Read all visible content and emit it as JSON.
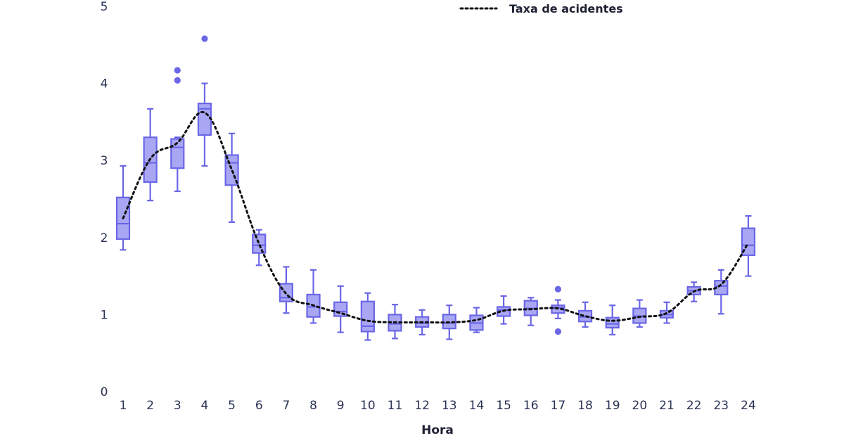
{
  "chart_data": {
    "type": "box",
    "xlabel": "Hora",
    "ylabel": "",
    "categories": [
      "1",
      "2",
      "3",
      "4",
      "5",
      "6",
      "7",
      "8",
      "9",
      "10",
      "11",
      "12",
      "13",
      "14",
      "15",
      "16",
      "17",
      "18",
      "19",
      "20",
      "21",
      "22",
      "23",
      "24"
    ],
    "y_ticks": [
      "0",
      "1",
      "2",
      "3",
      "4",
      "5"
    ],
    "ylim": [
      0,
      5
    ],
    "grid": false,
    "box_color": "#6a66e6",
    "box_fill": "#a9a7f3",
    "line_color": "#111111",
    "legend": {
      "placement": "top-right",
      "entries": [
        {
          "label": "Taxa de acidentes",
          "style": "dotted-line"
        }
      ]
    },
    "boxes": [
      {
        "x": "1",
        "min": 1.84,
        "q1": 1.98,
        "median": 2.18,
        "q3": 2.52,
        "max": 2.93,
        "outliers": []
      },
      {
        "x": "2",
        "min": 2.48,
        "q1": 2.72,
        "median": 2.97,
        "q3": 3.3,
        "max": 3.67,
        "outliers": []
      },
      {
        "x": "3",
        "min": 2.6,
        "q1": 2.9,
        "median": 3.17,
        "q3": 3.28,
        "max": 3.3,
        "outliers": [
          4.04,
          4.17
        ]
      },
      {
        "x": "4",
        "min": 2.93,
        "q1": 3.33,
        "median": 3.67,
        "q3": 3.74,
        "max": 4.0,
        "outliers": [
          4.58
        ]
      },
      {
        "x": "5",
        "min": 2.2,
        "q1": 2.68,
        "median": 2.97,
        "q3": 3.07,
        "max": 3.35,
        "outliers": []
      },
      {
        "x": "6",
        "min": 1.64,
        "q1": 1.8,
        "median": 1.9,
        "q3": 2.04,
        "max": 2.1,
        "outliers": []
      },
      {
        "x": "7",
        "min": 1.02,
        "q1": 1.17,
        "median": 1.22,
        "q3": 1.4,
        "max": 1.62,
        "outliers": []
      },
      {
        "x": "8",
        "min": 0.89,
        "q1": 0.97,
        "median": 1.1,
        "q3": 1.26,
        "max": 1.58,
        "outliers": []
      },
      {
        "x": "9",
        "min": 0.77,
        "q1": 0.98,
        "median": 1.04,
        "q3": 1.16,
        "max": 1.37,
        "outliers": []
      },
      {
        "x": "10",
        "min": 0.67,
        "q1": 0.78,
        "median": 0.85,
        "q3": 1.17,
        "max": 1.28,
        "outliers": []
      },
      {
        "x": "11",
        "min": 0.69,
        "q1": 0.79,
        "median": 0.88,
        "q3": 1.0,
        "max": 1.13,
        "outliers": []
      },
      {
        "x": "12",
        "min": 0.74,
        "q1": 0.84,
        "median": 0.89,
        "q3": 0.97,
        "max": 1.06,
        "outliers": []
      },
      {
        "x": "13",
        "min": 0.68,
        "q1": 0.82,
        "median": 0.89,
        "q3": 1.0,
        "max": 1.12,
        "outliers": []
      },
      {
        "x": "14",
        "min": 0.77,
        "q1": 0.8,
        "median": 0.89,
        "q3": 0.99,
        "max": 1.09,
        "outliers": []
      },
      {
        "x": "15",
        "min": 0.88,
        "q1": 0.98,
        "median": 1.06,
        "q3": 1.1,
        "max": 1.24,
        "outliers": []
      },
      {
        "x": "16",
        "min": 0.86,
        "q1": 0.99,
        "median": 1.08,
        "q3": 1.18,
        "max": 1.22,
        "outliers": []
      },
      {
        "x": "17",
        "min": 0.95,
        "q1": 1.02,
        "median": 1.09,
        "q3": 1.12,
        "max": 1.19,
        "outliers": [
          1.33,
          0.78
        ]
      },
      {
        "x": "18",
        "min": 0.84,
        "q1": 0.91,
        "median": 0.97,
        "q3": 1.05,
        "max": 1.16,
        "outliers": []
      },
      {
        "x": "19",
        "min": 0.74,
        "q1": 0.83,
        "median": 0.88,
        "q3": 0.96,
        "max": 1.12,
        "outliers": []
      },
      {
        "x": "20",
        "min": 0.84,
        "q1": 0.89,
        "median": 0.98,
        "q3": 1.08,
        "max": 1.19,
        "outliers": []
      },
      {
        "x": "21",
        "min": 0.89,
        "q1": 0.96,
        "median": 1.0,
        "q3": 1.05,
        "max": 1.16,
        "outliers": []
      },
      {
        "x": "22",
        "min": 1.17,
        "q1": 1.26,
        "median": 1.31,
        "q3": 1.36,
        "max": 1.42,
        "outliers": []
      },
      {
        "x": "23",
        "min": 1.01,
        "q1": 1.26,
        "median": 1.37,
        "q3": 1.44,
        "max": 1.58,
        "outliers": []
      },
      {
        "x": "24",
        "min": 1.5,
        "q1": 1.77,
        "median": 1.9,
        "q3": 2.12,
        "max": 2.28,
        "outliers": []
      }
    ],
    "series": [
      {
        "name": "Taxa de acidentes",
        "values": [
          2.25,
          3.02,
          3.23,
          3.62,
          2.88,
          1.92,
          1.27,
          1.12,
          1.02,
          0.92,
          0.9,
          0.9,
          0.9,
          0.93,
          1.05,
          1.07,
          1.08,
          0.98,
          0.92,
          0.97,
          1.02,
          1.3,
          1.39,
          1.93
        ]
      }
    ]
  }
}
